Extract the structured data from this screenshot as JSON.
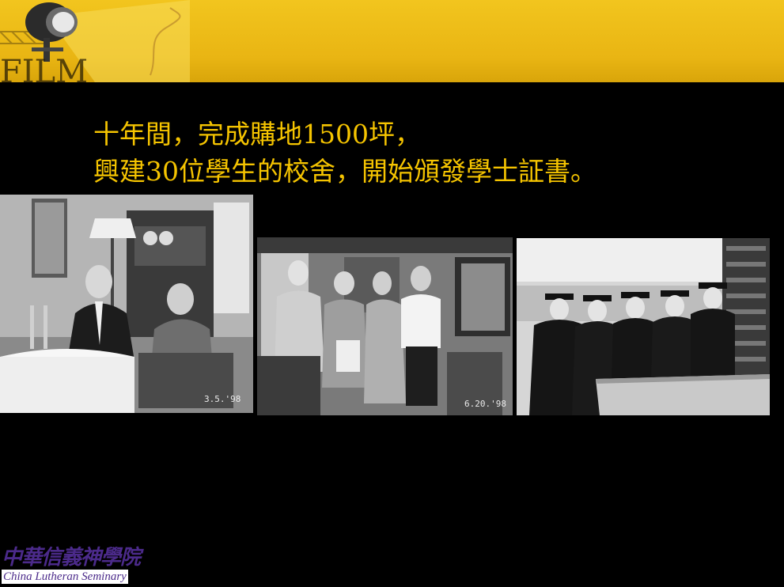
{
  "slide": {
    "headline_line1": "十年間，完成購地1500坪，",
    "headline_line2": "興建30位學生的校舍，開始頒發學士証書。"
  },
  "banner": {
    "background_color": "#e9b513",
    "decoration_icon": "stage-spotlight-icon",
    "decoration_text": "FILM"
  },
  "photos": [
    {
      "name": "photo-meeting-living-room",
      "date_stamp": "3.5.'98"
    },
    {
      "name": "photo-group-four-people",
      "date_stamp": "6.20.'98"
    },
    {
      "name": "photo-graduates-in-gowns"
    }
  ],
  "logo": {
    "chinese_name": "中華信義神學院",
    "english_name": "China Lutheran Seminary"
  },
  "colors": {
    "headline": "#f5c400",
    "logo": "#4b2a8a"
  }
}
